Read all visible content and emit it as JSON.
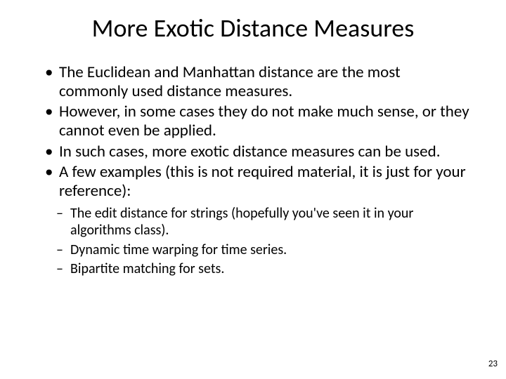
{
  "title": "More Exotic Distance Measures",
  "bullets": [
    "The Euclidean and Manhattan distance are the most commonly used distance measures.",
    "However, in some cases they do not make much sense, or they cannot even be applied.",
    "In such cases, more exotic distance measures can be used.",
    "A few examples (this is not required material, it is just for your reference):"
  ],
  "sub_bullets": [
    "The edit distance for strings (hopefully you've seen it in your algorithms class).",
    "Dynamic time warping for time series.",
    "Bipartite matching for sets."
  ],
  "page_number": "23",
  "colors": {
    "background": "#ffffff",
    "text": "#000000"
  },
  "typography": {
    "title_fontsize": 36,
    "bullet_fontsize": 23,
    "sub_bullet_fontsize": 20,
    "page_number_fontsize": 13,
    "font_family": "Calibri"
  }
}
